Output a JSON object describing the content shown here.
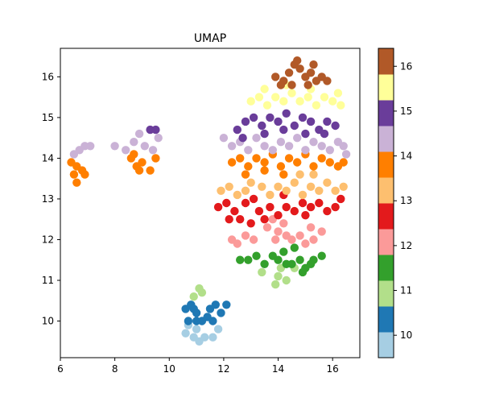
{
  "chart_data": {
    "type": "scatter",
    "title": "UMAP",
    "xlabel": "",
    "ylabel": "",
    "xlim": [
      6.0,
      17.0
    ],
    "ylim": [
      9.1,
      16.7
    ],
    "x_ticks": [
      "6",
      "8",
      "10",
      "12",
      "14",
      "16"
    ],
    "y_ticks": [
      "10",
      "11",
      "12",
      "13",
      "14",
      "15",
      "16"
    ],
    "grid": false,
    "colorbar": {
      "ticks": [
        "10",
        "11",
        "12",
        "13",
        "14",
        "15",
        "16"
      ],
      "range": [
        9.5,
        16.4
      ],
      "colors": [
        "#a6cee3",
        "#1f78b4",
        "#b2df8a",
        "#33a02c",
        "#fb9a99",
        "#e31a1c",
        "#fdbf6f",
        "#ff7f00",
        "#cab2d6",
        "#6a3d9a",
        "#ffff99",
        "#b15928"
      ]
    },
    "clusters": [
      {
        "value": 9.7,
        "color": "#a6cee3",
        "points": [
          [
            10.6,
            9.7
          ],
          [
            10.9,
            9.6
          ],
          [
            11.1,
            9.5
          ],
          [
            11.3,
            9.6
          ],
          [
            11.6,
            9.6
          ],
          [
            11.8,
            9.8
          ],
          [
            10.7,
            9.9
          ],
          [
            11.0,
            9.8
          ]
        ]
      },
      {
        "value": 10.2,
        "color": "#1f78b4",
        "points": [
          [
            10.6,
            10.3
          ],
          [
            10.8,
            10.4
          ],
          [
            11.0,
            10.2
          ],
          [
            10.7,
            10.0
          ],
          [
            11.0,
            10.0
          ],
          [
            11.2,
            10.0
          ],
          [
            11.5,
            10.3
          ],
          [
            11.7,
            10.4
          ],
          [
            11.9,
            10.2
          ],
          [
            12.1,
            10.4
          ],
          [
            11.4,
            10.1
          ],
          [
            11.6,
            10.0
          ],
          [
            10.9,
            10.3
          ]
        ]
      },
      {
        "value": 11.0,
        "color": "#b2df8a",
        "points": [
          [
            10.9,
            10.6
          ],
          [
            11.1,
            10.8
          ],
          [
            11.2,
            10.7
          ],
          [
            13.4,
            11.2
          ],
          [
            13.9,
            10.9
          ],
          [
            14.0,
            11.1
          ],
          [
            14.1,
            11.3
          ],
          [
            14.3,
            11.0
          ],
          [
            14.6,
            11.3
          ]
        ]
      },
      {
        "value": 11.6,
        "color": "#33a02c",
        "points": [
          [
            12.6,
            11.5
          ],
          [
            12.9,
            11.5
          ],
          [
            13.2,
            11.6
          ],
          [
            13.5,
            11.4
          ],
          [
            13.8,
            11.6
          ],
          [
            14.0,
            11.5
          ],
          [
            14.2,
            11.7
          ],
          [
            14.5,
            11.4
          ],
          [
            14.8,
            11.5
          ],
          [
            15.0,
            11.3
          ],
          [
            15.3,
            11.5
          ],
          [
            15.6,
            11.6
          ],
          [
            14.6,
            11.8
          ],
          [
            14.3,
            11.4
          ],
          [
            14.9,
            11.2
          ],
          [
            15.2,
            11.4
          ]
        ]
      },
      {
        "value": 12.1,
        "color": "#fb9a99",
        "points": [
          [
            12.3,
            12.0
          ],
          [
            12.5,
            11.9
          ],
          [
            12.8,
            12.1
          ],
          [
            13.1,
            12.0
          ],
          [
            13.6,
            12.3
          ],
          [
            13.8,
            12.5
          ],
          [
            14.0,
            12.2
          ],
          [
            14.2,
            12.4
          ],
          [
            14.5,
            12.0
          ],
          [
            14.8,
            12.1
          ],
          [
            15.0,
            11.9
          ],
          [
            15.3,
            12.0
          ],
          [
            15.6,
            12.2
          ],
          [
            13.9,
            12.0
          ],
          [
            14.3,
            12.1
          ],
          [
            15.2,
            12.3
          ]
        ]
      },
      {
        "value": 12.8,
        "color": "#e31a1c",
        "points": [
          [
            11.8,
            12.8
          ],
          [
            12.1,
            12.9
          ],
          [
            12.4,
            12.7
          ],
          [
            12.6,
            12.5
          ],
          [
            12.8,
            12.9
          ],
          [
            13.1,
            13.0
          ],
          [
            13.3,
            12.7
          ],
          [
            13.5,
            12.5
          ],
          [
            13.7,
            12.8
          ],
          [
            14.0,
            12.6
          ],
          [
            14.3,
            12.8
          ],
          [
            14.6,
            12.7
          ],
          [
            14.9,
            12.9
          ],
          [
            15.2,
            12.8
          ],
          [
            15.5,
            12.9
          ],
          [
            15.8,
            12.7
          ],
          [
            16.1,
            12.8
          ],
          [
            16.3,
            13.0
          ],
          [
            12.2,
            12.5
          ],
          [
            13.0,
            12.4
          ],
          [
            14.2,
            13.1
          ],
          [
            15.0,
            12.6
          ]
        ]
      },
      {
        "value": 13.3,
        "color": "#fdbf6f",
        "points": [
          [
            11.9,
            13.2
          ],
          [
            12.2,
            13.3
          ],
          [
            12.5,
            13.1
          ],
          [
            12.8,
            13.2
          ],
          [
            13.0,
            13.4
          ],
          [
            13.4,
            13.3
          ],
          [
            13.7,
            13.1
          ],
          [
            14.0,
            13.3
          ],
          [
            14.3,
            13.2
          ],
          [
            14.6,
            13.4
          ],
          [
            14.9,
            13.1
          ],
          [
            15.2,
            13.3
          ],
          [
            15.5,
            13.2
          ],
          [
            15.8,
            13.4
          ],
          [
            16.1,
            13.2
          ],
          [
            16.4,
            13.3
          ],
          [
            14.8,
            13.6
          ],
          [
            15.3,
            13.6
          ]
        ]
      },
      {
        "value": 13.8,
        "color": "#ff7f00",
        "points": [
          [
            6.4,
            13.9
          ],
          [
            6.5,
            13.6
          ],
          [
            6.6,
            13.8
          ],
          [
            6.8,
            13.7
          ],
          [
            6.6,
            13.4
          ],
          [
            6.9,
            13.6
          ],
          [
            8.6,
            14.0
          ],
          [
            8.8,
            13.8
          ],
          [
            9.0,
            13.9
          ],
          [
            9.3,
            13.7
          ],
          [
            9.5,
            14.0
          ],
          [
            8.7,
            14.1
          ],
          [
            8.9,
            13.7
          ],
          [
            12.3,
            13.9
          ],
          [
            12.6,
            14.0
          ],
          [
            12.9,
            13.8
          ],
          [
            13.2,
            14.0
          ],
          [
            13.5,
            13.9
          ],
          [
            13.8,
            14.1
          ],
          [
            14.1,
            13.8
          ],
          [
            14.4,
            14.0
          ],
          [
            14.7,
            13.9
          ],
          [
            15.0,
            14.1
          ],
          [
            15.3,
            13.8
          ],
          [
            15.6,
            14.0
          ],
          [
            15.9,
            13.9
          ],
          [
            16.2,
            13.8
          ],
          [
            16.4,
            13.9
          ],
          [
            12.8,
            13.6
          ],
          [
            13.5,
            13.7
          ],
          [
            14.2,
            13.6
          ]
        ]
      },
      {
        "value": 14.3,
        "color": "#cab2d6",
        "points": [
          [
            6.5,
            14.1
          ],
          [
            6.7,
            14.2
          ],
          [
            6.9,
            14.3
          ],
          [
            7.1,
            14.3
          ],
          [
            8.0,
            14.3
          ],
          [
            8.4,
            14.2
          ],
          [
            8.7,
            14.4
          ],
          [
            8.9,
            14.6
          ],
          [
            9.1,
            14.3
          ],
          [
            9.4,
            14.2
          ],
          [
            9.6,
            14.5
          ],
          [
            12.0,
            14.5
          ],
          [
            12.3,
            14.3
          ],
          [
            12.6,
            14.4
          ],
          [
            12.9,
            14.2
          ],
          [
            13.2,
            14.5
          ],
          [
            13.5,
            14.3
          ],
          [
            13.8,
            14.2
          ],
          [
            14.1,
            14.4
          ],
          [
            14.4,
            14.3
          ],
          [
            14.7,
            14.5
          ],
          [
            15.0,
            14.2
          ],
          [
            15.3,
            14.4
          ],
          [
            15.6,
            14.3
          ],
          [
            15.9,
            14.2
          ],
          [
            16.2,
            14.4
          ],
          [
            16.4,
            14.3
          ],
          [
            16.5,
            14.1
          ]
        ]
      },
      {
        "value": 14.8,
        "color": "#6a3d9a",
        "points": [
          [
            9.3,
            14.7
          ],
          [
            9.5,
            14.7
          ],
          [
            12.5,
            14.7
          ],
          [
            12.8,
            14.9
          ],
          [
            13.1,
            15.0
          ],
          [
            13.4,
            14.8
          ],
          [
            13.7,
            15.0
          ],
          [
            14.0,
            14.9
          ],
          [
            14.3,
            15.1
          ],
          [
            14.6,
            14.8
          ],
          [
            14.9,
            15.0
          ],
          [
            15.2,
            14.9
          ],
          [
            15.5,
            14.7
          ],
          [
            15.8,
            14.9
          ],
          [
            16.1,
            14.8
          ],
          [
            12.7,
            14.5
          ],
          [
            13.5,
            14.6
          ],
          [
            14.2,
            14.7
          ],
          [
            15.0,
            14.6
          ],
          [
            15.7,
            14.6
          ]
        ]
      },
      {
        "value": 15.4,
        "color": "#ffff99",
        "points": [
          [
            13.0,
            15.4
          ],
          [
            13.3,
            15.5
          ],
          [
            13.6,
            15.3
          ],
          [
            13.9,
            15.5
          ],
          [
            14.2,
            15.4
          ],
          [
            14.5,
            15.6
          ],
          [
            14.8,
            15.4
          ],
          [
            15.1,
            15.5
          ],
          [
            15.4,
            15.3
          ],
          [
            15.7,
            15.5
          ],
          [
            16.0,
            15.4
          ],
          [
            16.2,
            15.6
          ],
          [
            16.3,
            15.3
          ],
          [
            13.5,
            15.7
          ],
          [
            14.3,
            15.8
          ],
          [
            15.2,
            15.7
          ]
        ]
      },
      {
        "value": 16.1,
        "color": "#b15928",
        "points": [
          [
            13.9,
            16.0
          ],
          [
            14.2,
            15.9
          ],
          [
            14.4,
            16.1
          ],
          [
            14.6,
            16.3
          ],
          [
            14.8,
            16.2
          ],
          [
            15.0,
            16.0
          ],
          [
            15.2,
            16.1
          ],
          [
            15.4,
            15.9
          ],
          [
            15.6,
            16.0
          ],
          [
            15.8,
            15.9
          ],
          [
            14.5,
            15.8
          ],
          [
            15.1,
            15.8
          ],
          [
            14.7,
            16.4
          ],
          [
            15.3,
            16.3
          ],
          [
            14.1,
            15.8
          ]
        ]
      }
    ]
  }
}
